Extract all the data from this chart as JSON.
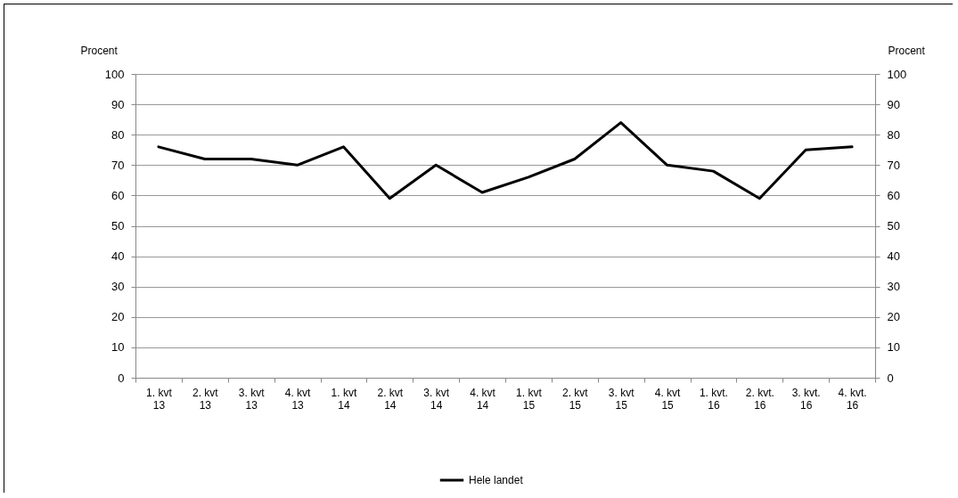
{
  "chart_data": {
    "type": "line",
    "ylabel": "Procent",
    "y2label": "Procent",
    "categories": [
      "1. kvt 13",
      "2. kvt 13",
      "3. kvt 13",
      "4. kvt 13",
      "1. kvt 14",
      "2. kvt 14",
      "3. kvt 14",
      "4. kvt 14",
      "1. kvt 15",
      "2. kvt 15",
      "3. kvt 15",
      "4. kvt 15",
      "1. kvt. 16",
      "2. kvt. 16",
      "3. kvt. 16",
      "4. kvt. 16"
    ],
    "series": [
      {
        "name": "Hele landet",
        "color": "#000000",
        "values": [
          76,
          72,
          72,
          70,
          76,
          59,
          70,
          61,
          66,
          72,
          84,
          70,
          68,
          59,
          75,
          76
        ]
      }
    ],
    "ylim": [
      0,
      100
    ],
    "yticks": [
      0,
      10,
      20,
      30,
      40,
      50,
      60,
      70,
      80,
      90,
      100
    ],
    "y2lim": [
      0,
      100
    ],
    "y2ticks": [
      0,
      10,
      20,
      30,
      40,
      50,
      60,
      70,
      80,
      90,
      100
    ],
    "grid": "y",
    "legend": "bottom",
    "marker": "none",
    "line_style": "solid"
  }
}
